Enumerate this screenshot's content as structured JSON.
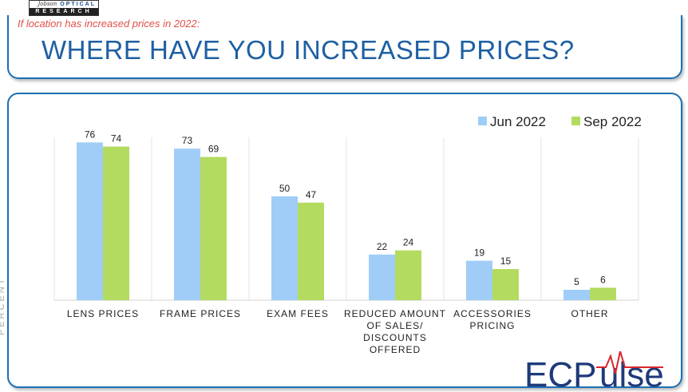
{
  "logo": {
    "top": "OPTICAL",
    "prefix": "Jobson",
    "bottom": "RESEARCH"
  },
  "header": {
    "subtitle": "If location has increased prices in 2022:",
    "title": "WHERE HAVE YOU INCREASED PRICES?"
  },
  "side_label": "PERCENT",
  "brand": {
    "name": "ECPulse",
    "part1": "ECP",
    "part2": "ulse",
    "color_dark": "#1e3a7a",
    "color_red": "#d9262c"
  },
  "chart_data": {
    "type": "bar",
    "categories": [
      [
        "LENS PRICES"
      ],
      [
        "FRAME PRICES"
      ],
      [
        "EXAM FEES"
      ],
      [
        "REDUCED AMOUNT",
        "OF SALES/",
        "DISCOUNTS",
        "OFFERED"
      ],
      [
        "ACCESSORIES",
        "PRICING"
      ],
      [
        "OTHER"
      ]
    ],
    "series": [
      {
        "name": "Jun 2022",
        "values": [
          76,
          73,
          50,
          22,
          19,
          5
        ],
        "color": "#9fcdf7"
      },
      {
        "name": "Sep 2022",
        "values": [
          74,
          69,
          47,
          24,
          15,
          6
        ],
        "color": "#b3db5f"
      }
    ],
    "ylim": [
      0,
      80
    ],
    "legend": "top-right",
    "grid": false
  }
}
